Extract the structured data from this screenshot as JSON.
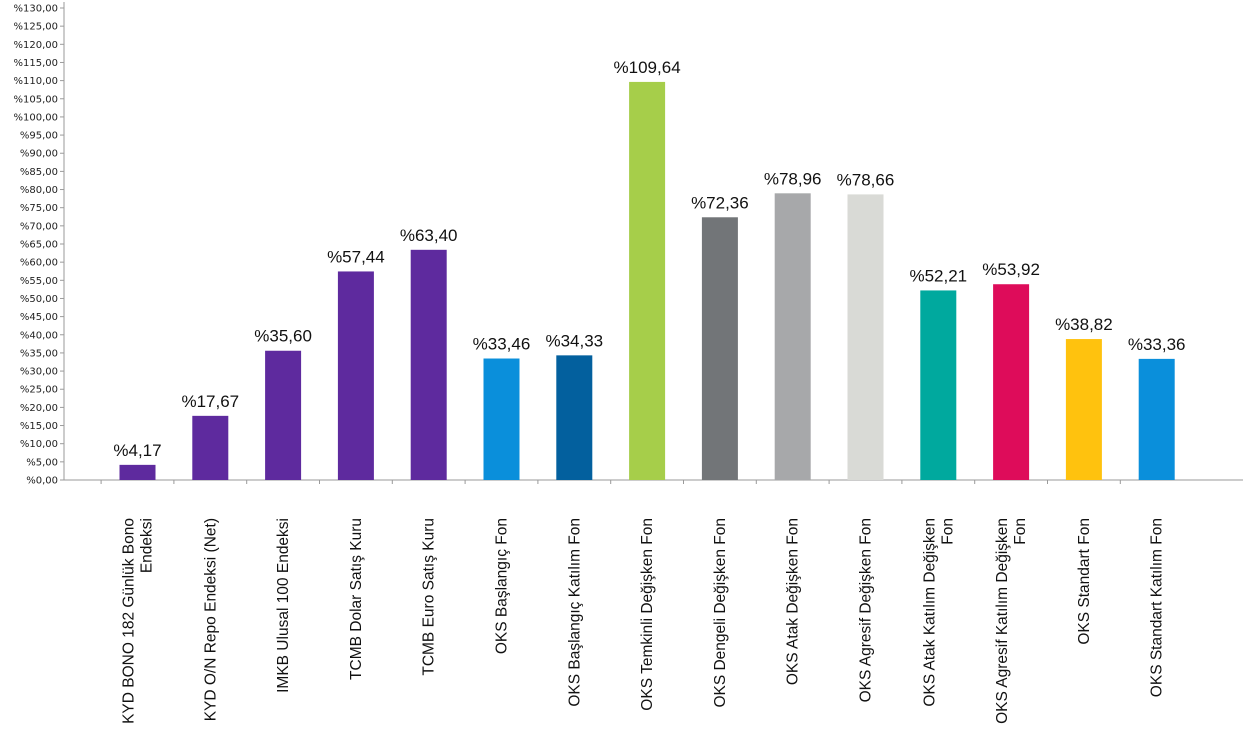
{
  "chart_data": {
    "type": "bar",
    "title": "",
    "xlabel": "",
    "ylabel": "",
    "ylim": [
      0,
      130
    ],
    "ytick_step": 5,
    "ytick_labels": [
      "%0,00",
      "%5,00",
      "%10,00",
      "%15,00",
      "%20,00",
      "%25,00",
      "%30,00",
      "%35,00",
      "%40,00",
      "%45,00",
      "%50,00",
      "%55,00",
      "%60,00",
      "%65,00",
      "%70,00",
      "%75,00",
      "%80,00",
      "%85,00",
      "%90,00",
      "%95,00",
      "%100,00",
      "%105,00",
      "%110,00",
      "%115,00",
      "%120,00",
      "%125,00",
      "%130,00"
    ],
    "grid": false,
    "legend": "none",
    "bars": [
      {
        "category": [
          "KYD BONO 182 Günlük Bono",
          "Endeksi"
        ],
        "value": 4.17,
        "label": "%4,17",
        "color": "#5E2A9E"
      },
      {
        "category": [
          "KYD O/N Repo Endeksi (Net)"
        ],
        "value": 17.67,
        "label": "%17,67",
        "color": "#5E2A9E"
      },
      {
        "category": [
          "IMKB Ulusal 100 Endeksi"
        ],
        "value": 35.6,
        "label": "%35,60",
        "color": "#5E2A9E"
      },
      {
        "category": [
          "TCMB Dolar Satış Kuru"
        ],
        "value": 57.44,
        "label": "%57,44",
        "color": "#5E2A9E"
      },
      {
        "category": [
          "TCMB Euro Satış Kuru"
        ],
        "value": 63.4,
        "label": "%63,40",
        "color": "#5E2A9E"
      },
      {
        "category": [
          "OKS Başlangıç Fon"
        ],
        "value": 33.46,
        "label": "%33,46",
        "color": "#0A8FDB"
      },
      {
        "category": [
          "OKS Başlangıç Katılım Fon"
        ],
        "value": 34.33,
        "label": "%34,33",
        "color": "#03609E"
      },
      {
        "category": [
          "OKS Temkinli Değişken Fon"
        ],
        "value": 109.64,
        "label": "%109,64",
        "color": "#A6CE4A"
      },
      {
        "category": [
          "OKS Dengeli Değişken Fon"
        ],
        "value": 72.36,
        "label": "%72,36",
        "color": "#727578"
      },
      {
        "category": [
          "OKS Atak Değişken Fon"
        ],
        "value": 78.96,
        "label": "%78,96",
        "color": "#A7A8AA"
      },
      {
        "category": [
          "OKS Agresif Değişken Fon"
        ],
        "value": 78.66,
        "label": "%78,66",
        "color": "#D9DAD6"
      },
      {
        "category": [
          "OKS Atak Katılım Değişken",
          "Fon"
        ],
        "value": 52.21,
        "label": "%52,21",
        "color": "#00A99E"
      },
      {
        "category": [
          "OKS Agresif Katılım Değişken",
          "Fon"
        ],
        "value": 53.92,
        "label": "%53,92",
        "color": "#DE0C5A"
      },
      {
        "category": [
          "OKS Standart Fon"
        ],
        "value": 38.82,
        "label": "%38,82",
        "color": "#FFC20E"
      },
      {
        "category": [
          "OKS Standart Katılım Fon"
        ],
        "value": 33.36,
        "label": "%33,36",
        "color": "#0A8FDB"
      }
    ]
  }
}
